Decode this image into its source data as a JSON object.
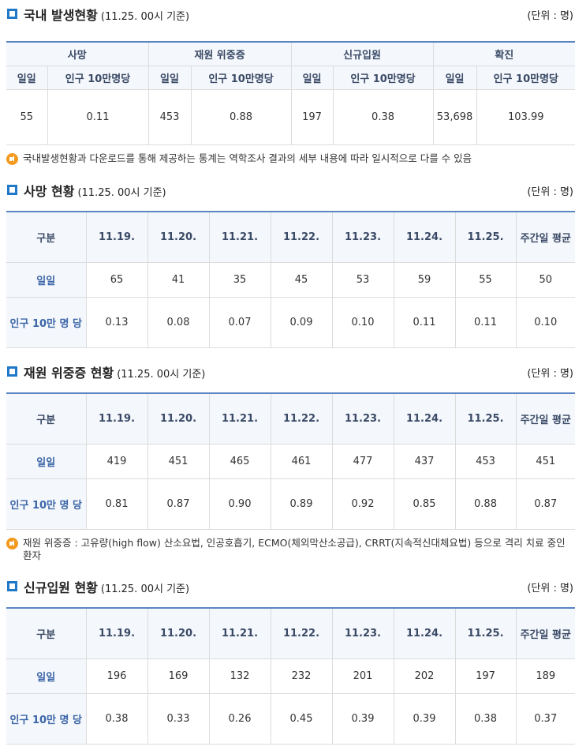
{
  "overview": {
    "title": "국내 발생현황",
    "basis": "(11.25. 00시 기준)",
    "unit": "(단위 : 명)",
    "groups": [
      "사망",
      "재원 위중증",
      "신규입원",
      "확진"
    ],
    "sub_daily": "일일",
    "sub_per100k": "인구 10만명당",
    "values": [
      {
        "daily": "55",
        "per100k": "0.11"
      },
      {
        "daily": "453",
        "per100k": "0.88"
      },
      {
        "daily": "197",
        "per100k": "0.38"
      },
      {
        "daily": "53,698",
        "per100k": "103.99"
      }
    ],
    "note": "국내발생현황과 다운로드를 통해 제공하는 통계는 역학조사 결과의 세부 내용에 따라 일시적으로 다를 수 있음"
  },
  "columns": [
    "구분",
    "11.19.",
    "11.20.",
    "11.21.",
    "11.22.",
    "11.23.",
    "11.24.",
    "11.25.",
    "주간일 평균"
  ],
  "row_labels": {
    "daily": "일일",
    "per100k": "인구 10만 명 당"
  },
  "deaths": {
    "title": "사망 현황",
    "basis": "(11.25. 00시 기준)",
    "unit": "(단위 : 명)",
    "daily": [
      "65",
      "41",
      "35",
      "45",
      "53",
      "59",
      "55",
      "50"
    ],
    "per100k": [
      "0.13",
      "0.08",
      "0.07",
      "0.09",
      "0.10",
      "0.11",
      "0.11",
      "0.10"
    ]
  },
  "severe": {
    "title": "재원 위중증 현황",
    "basis": "(11.25. 00시 기준)",
    "unit": "(단위 : 명)",
    "daily": [
      "419",
      "451",
      "465",
      "461",
      "477",
      "437",
      "453",
      "451"
    ],
    "per100k": [
      "0.81",
      "0.87",
      "0.90",
      "0.89",
      "0.92",
      "0.85",
      "0.88",
      "0.87"
    ],
    "note": "재원 위중증 : 고유량(high flow) 산소요법, 인공호흡기, ECMO(체외막산소공급), CRRT(지속적신대체요법) 등으로 격리 치료 중인 환자"
  },
  "admissions": {
    "title": "신규입원 현황",
    "basis": "(11.25. 00시 기준)",
    "unit": "(단위 : 명)",
    "daily": [
      "196",
      "169",
      "132",
      "232",
      "201",
      "202",
      "197",
      "189"
    ],
    "per100k": [
      "0.38",
      "0.33",
      "0.26",
      "0.45",
      "0.39",
      "0.39",
      "0.38",
      "0.37"
    ]
  },
  "colors": {
    "accent": "#1f78c8",
    "header_text": "#3a4a66",
    "row_label": "#3c66a8",
    "note_icon": "#f39a1e"
  }
}
